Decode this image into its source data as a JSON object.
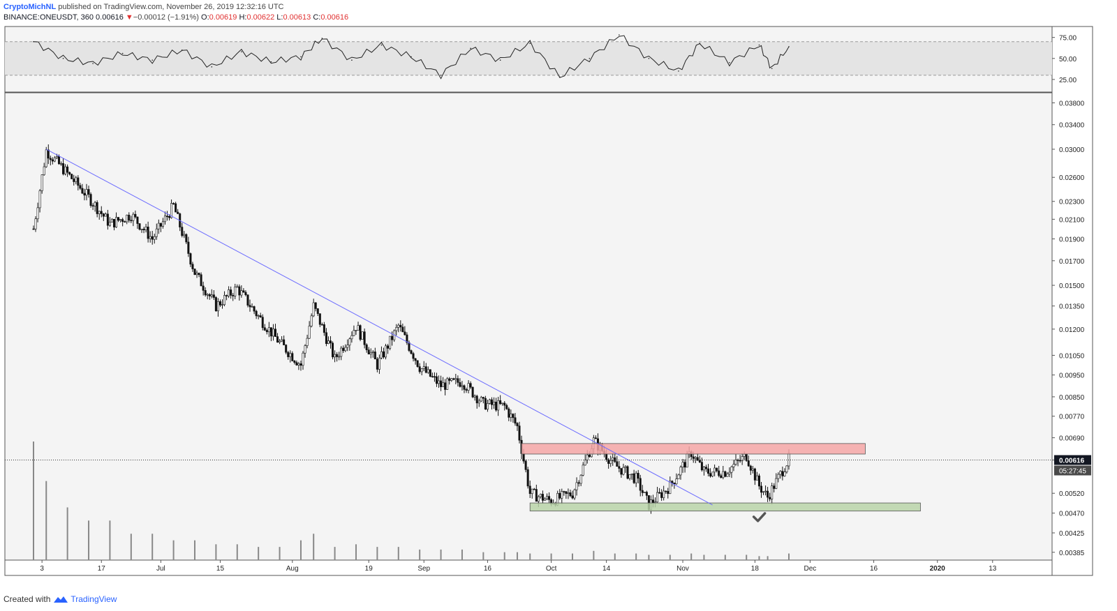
{
  "header": {
    "author": "CryptoMichNL",
    "published": "published on TradingView.com, November 26, 2019 12:32:16 UTC",
    "symbol_line": "BINANCE:ONEUSDT, 360",
    "last": "0.00616",
    "change": "−0.00012 (−1.91%)",
    "o_label": "O:",
    "o_val": "0.00619",
    "h_label": "H:",
    "h_val": "0.00622",
    "l_label": "L:",
    "l_val": "0.00613",
    "c_label": "C:",
    "c_val": "0.00616"
  },
  "footer": {
    "created_with": "Created with",
    "brand": "TradingView",
    "logo_icon": "tradingview-logo-icon"
  },
  "colors": {
    "resistance_zone": "#f4a6a6",
    "support_zone": "#b9d3a8",
    "trendline": "#6b6bff",
    "panel_bg": "#f4f4f4",
    "rsi_band": "#e4e4e4",
    "candle": "#111111"
  },
  "annotations": {
    "checkmark_icon": "checkmark-icon"
  },
  "chart_data": [
    {
      "type": "line",
      "panel": "rsi",
      "ylim": [
        10,
        88
      ],
      "yticks": [
        "75.00",
        "50.00",
        "25.00"
      ],
      "band": [
        30,
        70
      ],
      "x": [
        "Jun 1",
        "Jun 8",
        "Jun 15",
        "Jun 22",
        "Jun 29",
        "Jul 6",
        "Jul 13",
        "Jul 20",
        "Jul 27",
        "Aug 3",
        "Aug 8",
        "Aug 15",
        "Aug 22",
        "Aug 29",
        "Sep 5",
        "Sep 12",
        "Sep 19",
        "Sep 26",
        "Oct 3",
        "Oct 10",
        "Oct 17",
        "Oct 24",
        "Oct 31",
        "Nov 5",
        "Nov 12",
        "Nov 19",
        "Nov 22",
        "Nov 26"
      ],
      "values": [
        70,
        50,
        44,
        56,
        48,
        60,
        40,
        58,
        46,
        52,
        74,
        48,
        66,
        52,
        30,
        62,
        48,
        68,
        28,
        50,
        78,
        50,
        35,
        68,
        45,
        66,
        38,
        64
      ]
    },
    {
      "type": "candlestick",
      "panel": "price",
      "symbol": "BINANCE:ONEUSDT",
      "interval": "360",
      "scale": "log",
      "ylim": [
        0.0037,
        0.04
      ],
      "yticks": [
        "0.03800",
        "0.03400",
        "0.03000",
        "0.02600",
        "0.02300",
        "0.02100",
        "0.01900",
        "0.01700",
        "0.01500",
        "0.01350",
        "0.01200",
        "0.01050",
        "0.00950",
        "0.00850",
        "0.00770",
        "0.00690",
        "0.00616",
        "0.00520",
        "0.00470",
        "0.00425",
        "0.00385"
      ],
      "xticks": [
        "3",
        "17",
        "Jul",
        "15",
        "Aug",
        "19",
        "Sep",
        "16",
        "Oct",
        "14",
        "Nov",
        "18",
        "Dec",
        "16",
        "2020",
        "13"
      ],
      "last_price": "0.00616",
      "countdown": "05:27:45",
      "x": [
        "Jun 1",
        "Jun 4",
        "Jun 9",
        "Jun 14",
        "Jun 19",
        "Jun 24",
        "Jun 29",
        "Jul 4",
        "Jul 9",
        "Jul 14",
        "Jul 19",
        "Jul 24",
        "Jul 29",
        "Aug 3",
        "Aug 6",
        "Aug 11",
        "Aug 16",
        "Aug 21",
        "Aug 26",
        "Aug 31",
        "Sep 5",
        "Sep 10",
        "Sep 15",
        "Sep 20",
        "Sep 23",
        "Sep 26",
        "Oct 1",
        "Oct 6",
        "Oct 11",
        "Oct 16",
        "Oct 21",
        "Oct 24",
        "Oct 29",
        "Nov 3",
        "Nov 6",
        "Nov 11",
        "Nov 16",
        "Nov 19",
        "Nov 21",
        "Nov 26"
      ],
      "close": [
        0.02,
        0.0298,
        0.0265,
        0.0235,
        0.0205,
        0.0215,
        0.019,
        0.0225,
        0.016,
        0.0135,
        0.0148,
        0.0128,
        0.0112,
        0.01,
        0.0135,
        0.0103,
        0.0122,
        0.01,
        0.0122,
        0.0099,
        0.009,
        0.0092,
        0.0082,
        0.0081,
        0.0073,
        0.0052,
        0.005,
        0.0052,
        0.0068,
        0.006,
        0.0056,
        0.0049,
        0.0054,
        0.0064,
        0.0058,
        0.0058,
        0.0063,
        0.0054,
        0.0051,
        0.0062
      ],
      "trendline": {
        "from": [
          "Jun 4",
          0.03
        ],
        "to": [
          "Nov 8",
          0.0049
        ]
      },
      "zones": [
        {
          "name": "resistance",
          "from": "Sep 24",
          "to": "Dec 14",
          "low": 0.00635,
          "high": 0.0067
        },
        {
          "name": "support",
          "from": "Sep 26",
          "to": "Dec 27",
          "low": 0.00475,
          "high": 0.00495
        }
      ]
    },
    {
      "type": "bar",
      "panel": "volume",
      "values": [
        9,
        6,
        4,
        3,
        3,
        2,
        2,
        1.5,
        1.5,
        1.2,
        1.2,
        1,
        1,
        1.5,
        2,
        1,
        1.2,
        1,
        1,
        0.8,
        0.8,
        0.8,
        0.6,
        0.6,
        0.6,
        0.5,
        0.5,
        0.5,
        0.7,
        0.5,
        0.5,
        0.4,
        0.4,
        0.5,
        0.4,
        0.4,
        0.4,
        0.3,
        0.3,
        0.5
      ]
    }
  ]
}
